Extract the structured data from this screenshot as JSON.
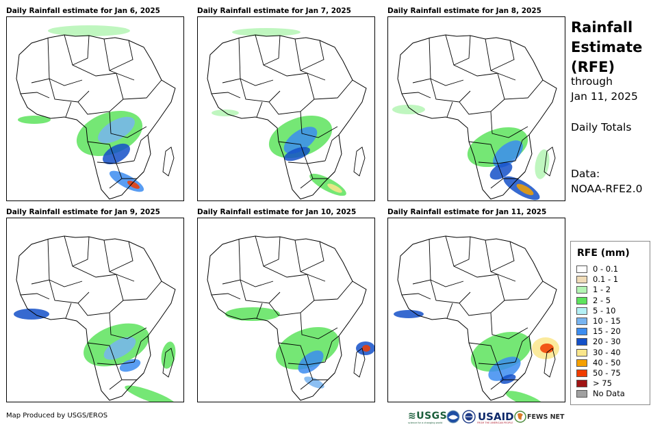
{
  "panels": [
    {
      "title": "Daily Rainfall estimate for Jan 6, 2025"
    },
    {
      "title": "Daily Rainfall estimate for Jan 7, 2025"
    },
    {
      "title": "Daily Rainfall estimate for Jan 8, 2025"
    },
    {
      "title": "Daily Rainfall estimate for Jan 9, 2025"
    },
    {
      "title": "Daily Rainfall estimate for Jan 10, 2025"
    },
    {
      "title": "Daily Rainfall estimate for Jan 11, 2025"
    }
  ],
  "side": {
    "title_line1": "Rainfall",
    "title_line2": "Estimate",
    "title_line3": "(RFE)",
    "through_label": "through",
    "through_date": "Jan 11, 2025",
    "totals": "Daily Totals",
    "data_label": "Data:",
    "data_source": "NOAA-RFE2.0"
  },
  "legend": {
    "title": "RFE (mm)",
    "items": [
      {
        "label": "0 - 0.1",
        "color": "#ffffff"
      },
      {
        "label": "0.1 - 1",
        "color": "#f0dcb8"
      },
      {
        "label": "1 - 2",
        "color": "#b4f5b4"
      },
      {
        "label": "2 - 5",
        "color": "#5de35d"
      },
      {
        "label": "5 - 10",
        "color": "#b4f0f5"
      },
      {
        "label": "10 - 15",
        "color": "#78b4f0"
      },
      {
        "label": "15 - 20",
        "color": "#3c8cf0"
      },
      {
        "label": "20 - 30",
        "color": "#1450c8"
      },
      {
        "label": "30 - 40",
        "color": "#fae68c"
      },
      {
        "label": "40 - 50",
        "color": "#f5a000"
      },
      {
        "label": "50 - 75",
        "color": "#f03c00"
      },
      {
        "label": "> 75",
        "color": "#a01414"
      },
      {
        "label": "No Data",
        "color": "#a0a0a0"
      }
    ]
  },
  "footer": {
    "credit": "Map Produced by USGS/EROS",
    "logo_usgs": "≋USGS",
    "logo_usgs_tagline": "science for a changing world",
    "logo_usaid": "USAID",
    "logo_usaid_tagline": "FROM THE AMERICAN PEOPLE",
    "logo_fews": "FEWS NET"
  }
}
